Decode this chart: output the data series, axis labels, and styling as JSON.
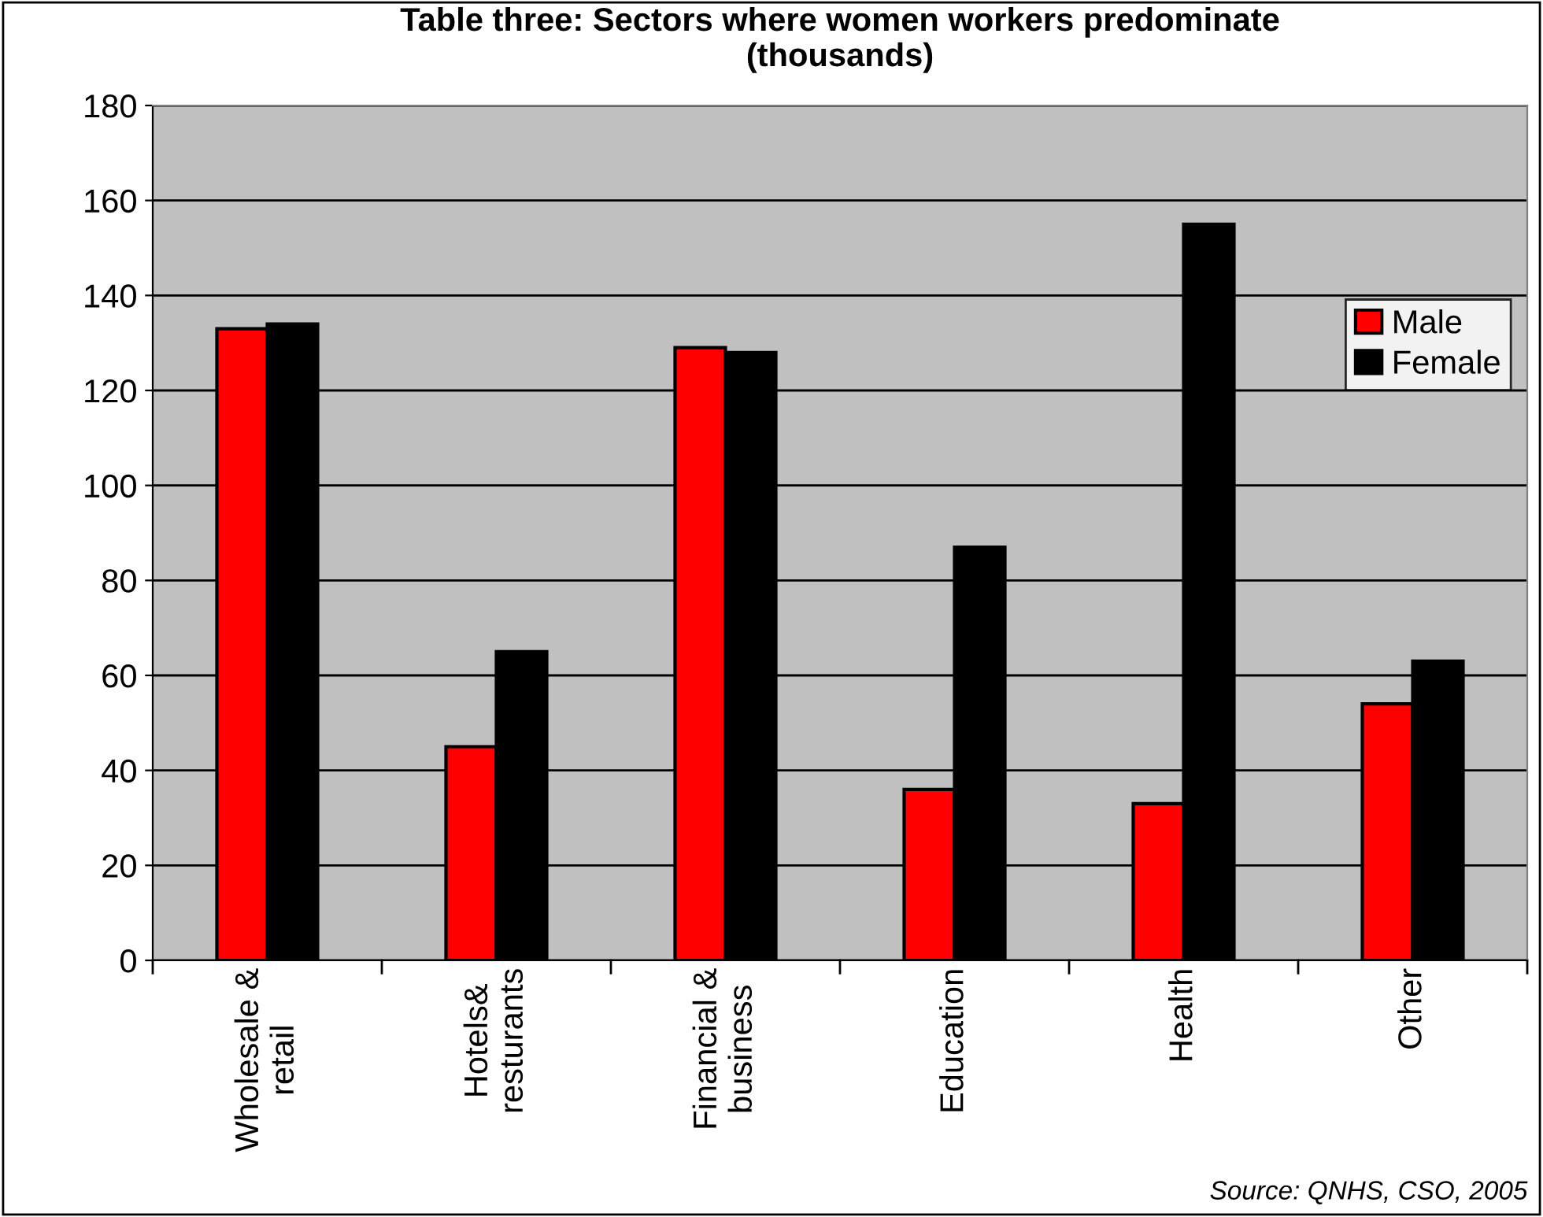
{
  "chart_data": {
    "type": "bar",
    "title": "Table three: Sectors where women workers predominate\n(thousands)",
    "categories": [
      "Wholesale &\nretail",
      "Hotels&\nresturants",
      "Financial &\nbusiness",
      "Education",
      "Health",
      "Other"
    ],
    "series": [
      {
        "name": "Male",
        "color": "#ff0000",
        "values": [
          133,
          45,
          129,
          36,
          33,
          54
        ]
      },
      {
        "name": "Female",
        "color": "#000000",
        "values": [
          134,
          65,
          128,
          87,
          155,
          63
        ]
      }
    ],
    "ylim": [
      0,
      180
    ],
    "yticks": [
      0,
      20,
      40,
      60,
      80,
      100,
      120,
      140,
      160,
      180
    ],
    "grid": "y",
    "legend": "right",
    "annotations": [
      "Source: QNHS, CSO, 2005"
    ]
  }
}
